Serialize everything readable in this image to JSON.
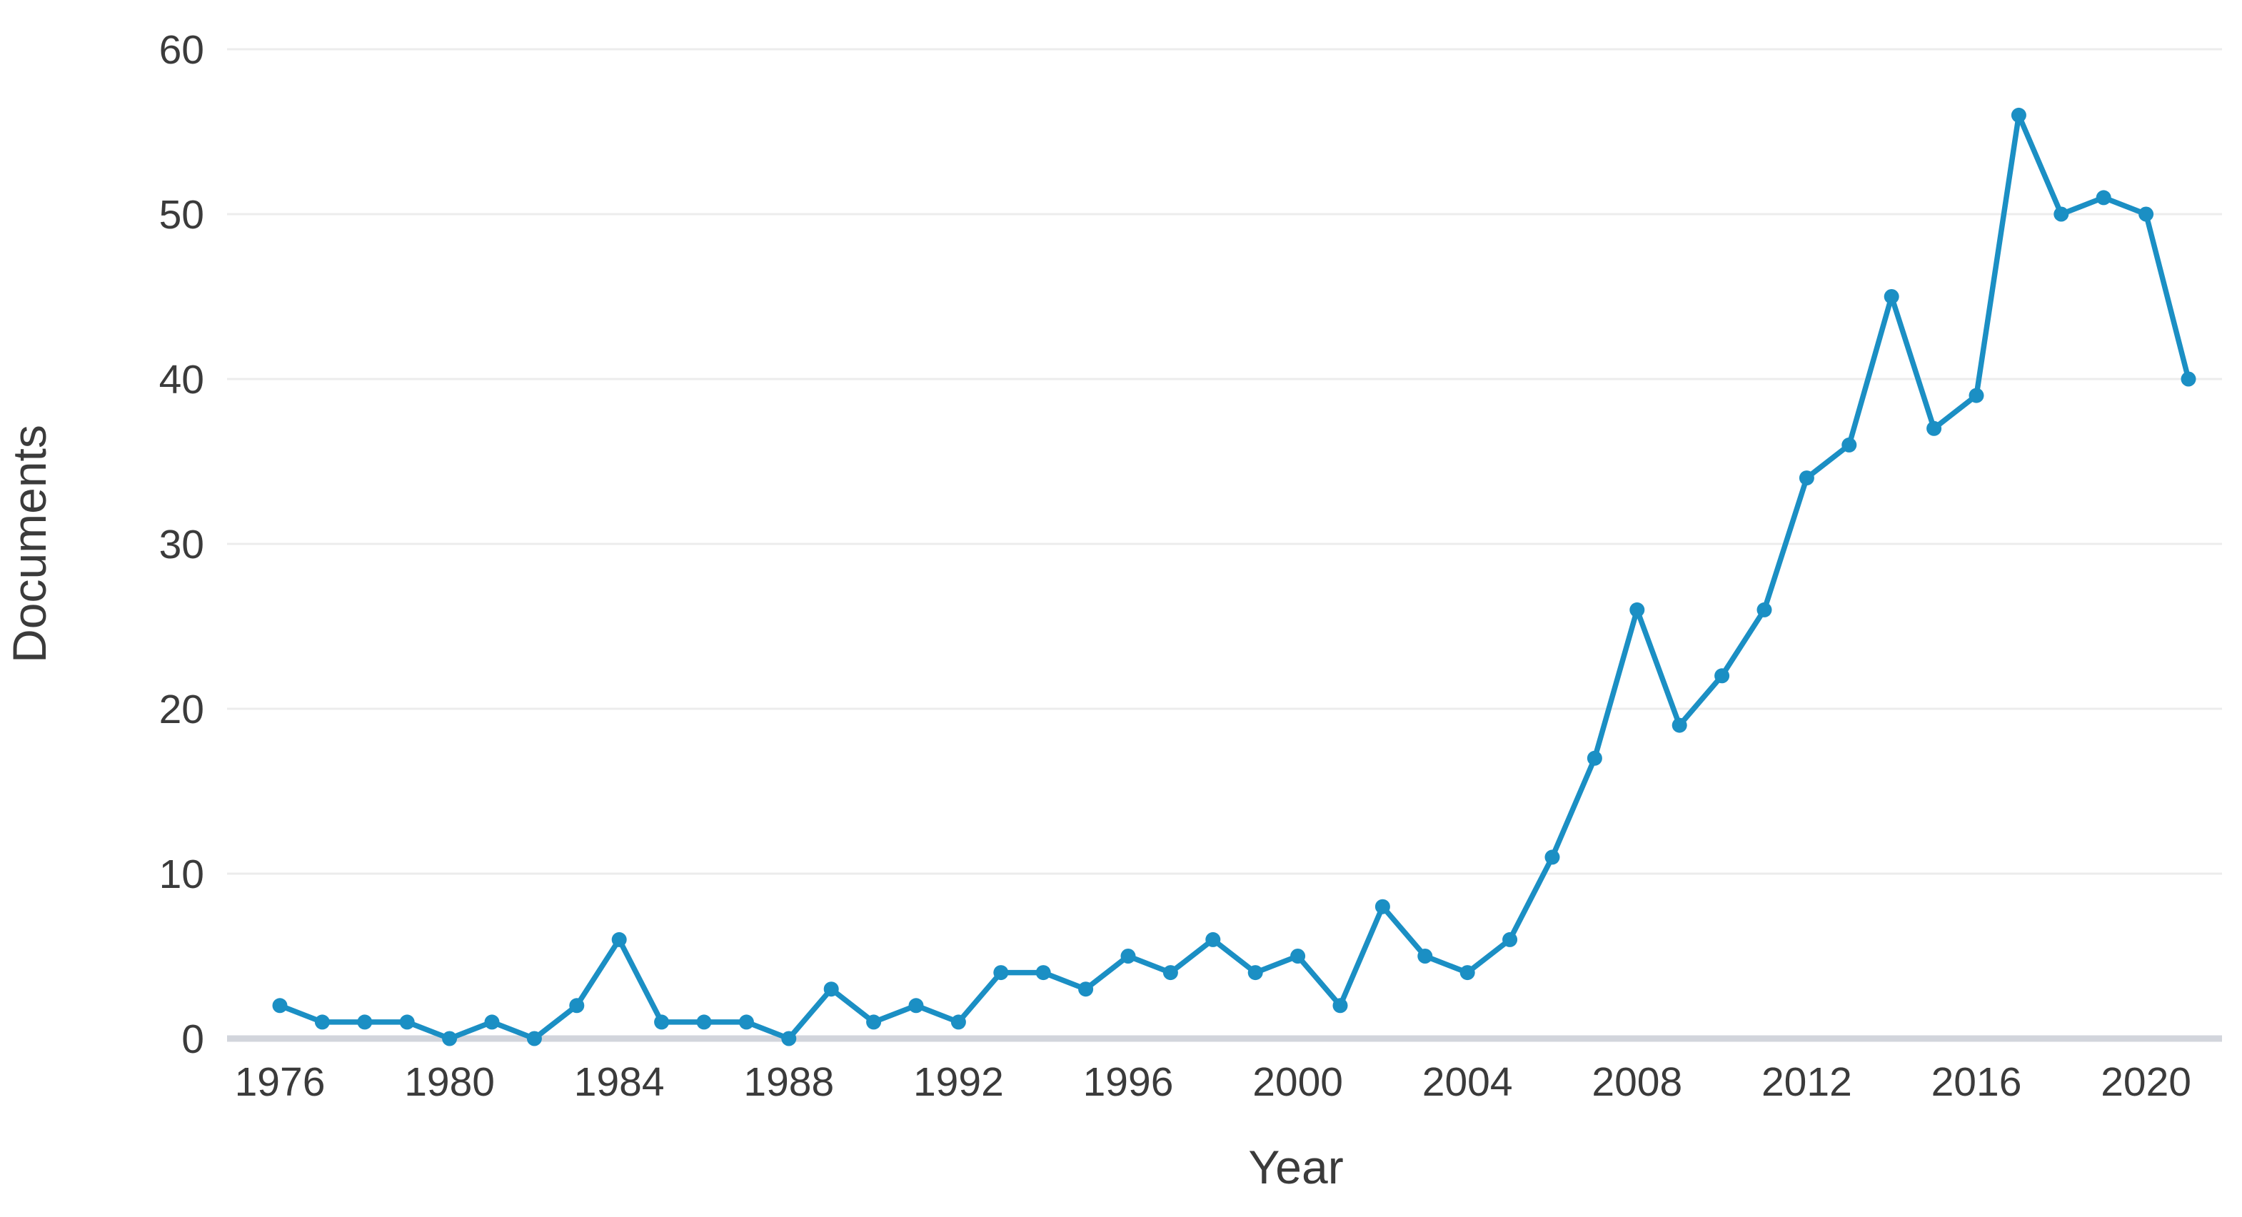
{
  "page": {
    "background_color": "#ffffff"
  },
  "chart_data": {
    "type": "line",
    "title": "",
    "xlabel": "Year",
    "ylabel": "Documents",
    "grid": "horizontal",
    "legend": "none",
    "xlim": [
      1976,
      2021
    ],
    "ylim": [
      0,
      60
    ],
    "xticks": [
      1976,
      1980,
      1984,
      1988,
      1992,
      1996,
      2000,
      2004,
      2008,
      2012,
      2016,
      2020
    ],
    "yticks": [
      0,
      10,
      20,
      30,
      40,
      50,
      60
    ],
    "series": [
      {
        "name": "Documents",
        "color": "#1b8fc4",
        "marker": "circle",
        "x": [
          1976,
          1977,
          1978,
          1979,
          1980,
          1981,
          1982,
          1983,
          1984,
          1985,
          1986,
          1987,
          1988,
          1989,
          1990,
          1991,
          1992,
          1993,
          1994,
          1995,
          1996,
          1997,
          1998,
          1999,
          2000,
          2001,
          2002,
          2003,
          2004,
          2005,
          2006,
          2007,
          2008,
          2009,
          2010,
          2011,
          2012,
          2013,
          2014,
          2015,
          2016,
          2017,
          2018,
          2019,
          2020,
          2021
        ],
        "values": [
          2,
          1,
          1,
          1,
          0,
          1,
          0,
          2,
          6,
          1,
          1,
          1,
          0,
          3,
          1,
          2,
          1,
          4,
          4,
          3,
          5,
          4,
          6,
          4,
          5,
          2,
          8,
          5,
          4,
          6,
          11,
          17,
          26,
          19,
          22,
          26,
          34,
          36,
          45,
          37,
          39,
          56,
          50,
          51,
          50,
          40
        ]
      }
    ]
  }
}
